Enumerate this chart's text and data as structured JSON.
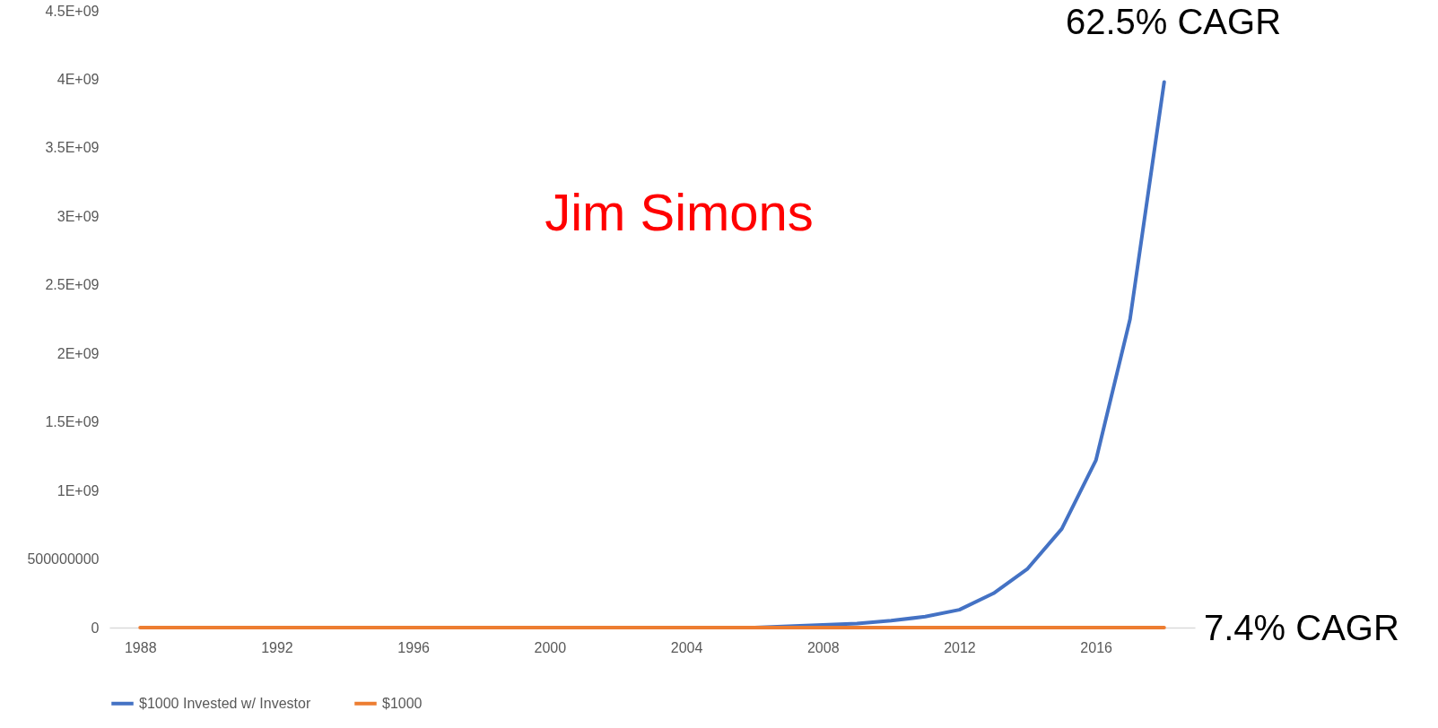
{
  "chart_data": {
    "type": "line",
    "categories": [
      "1988",
      null,
      null,
      null,
      "1992",
      null,
      null,
      null,
      "1996",
      null,
      null,
      null,
      "2000",
      null,
      null,
      null,
      "2004",
      null,
      null,
      null,
      "2008",
      null,
      null,
      null,
      "2012",
      null,
      null,
      null,
      "2016",
      null,
      null
    ],
    "series": [
      {
        "name": "$1000 Invested w/ Investor",
        "color": "#4472c4",
        "values": [
          null,
          null,
          null,
          null,
          null,
          null,
          null,
          null,
          null,
          null,
          null,
          null,
          null,
          null,
          null,
          null,
          null,
          null,
          0,
          10000000.0,
          20000000.0,
          30000000.0,
          50000000.0,
          80000000.0,
          130000000.0,
          250000000.0,
          430000000.0,
          720000000.0,
          1220000000.0,
          2250000000.0,
          3980000000.0
        ]
      },
      {
        "name": "$1000",
        "color": "#ed7d31",
        "values": [
          0,
          0,
          0,
          0,
          0,
          0,
          0,
          0,
          0,
          0,
          0,
          0,
          0,
          0,
          0,
          0,
          0,
          0,
          0,
          0,
          0,
          0,
          0,
          0,
          0,
          0,
          0,
          0,
          0,
          0,
          0
        ]
      }
    ],
    "ylim": [
      0,
      4500000000.0
    ],
    "yticks": [
      0,
      500000000,
      {
        "value": 1000000000.0,
        "label": "1E+09"
      },
      {
        "value": 1500000000.0,
        "label": "1.5E+09"
      },
      {
        "value": 2000000000.0,
        "label": "2E+09"
      },
      {
        "value": 2500000000.0,
        "label": "2.5E+09"
      },
      {
        "value": 3000000000.0,
        "label": "3E+09"
      },
      {
        "value": 3500000000.0,
        "label": "3.5E+09"
      },
      {
        "value": 4000000000.0,
        "label": "4E+09"
      },
      {
        "value": 4500000000.0,
        "label": "4.5E+09"
      }
    ],
    "annotations": [
      "Jim Simons",
      "62.5% CAGR",
      "7.4% CAGR"
    ],
    "grid": false,
    "legend": "bottom",
    "marker": "none",
    "line_style": "solid"
  }
}
